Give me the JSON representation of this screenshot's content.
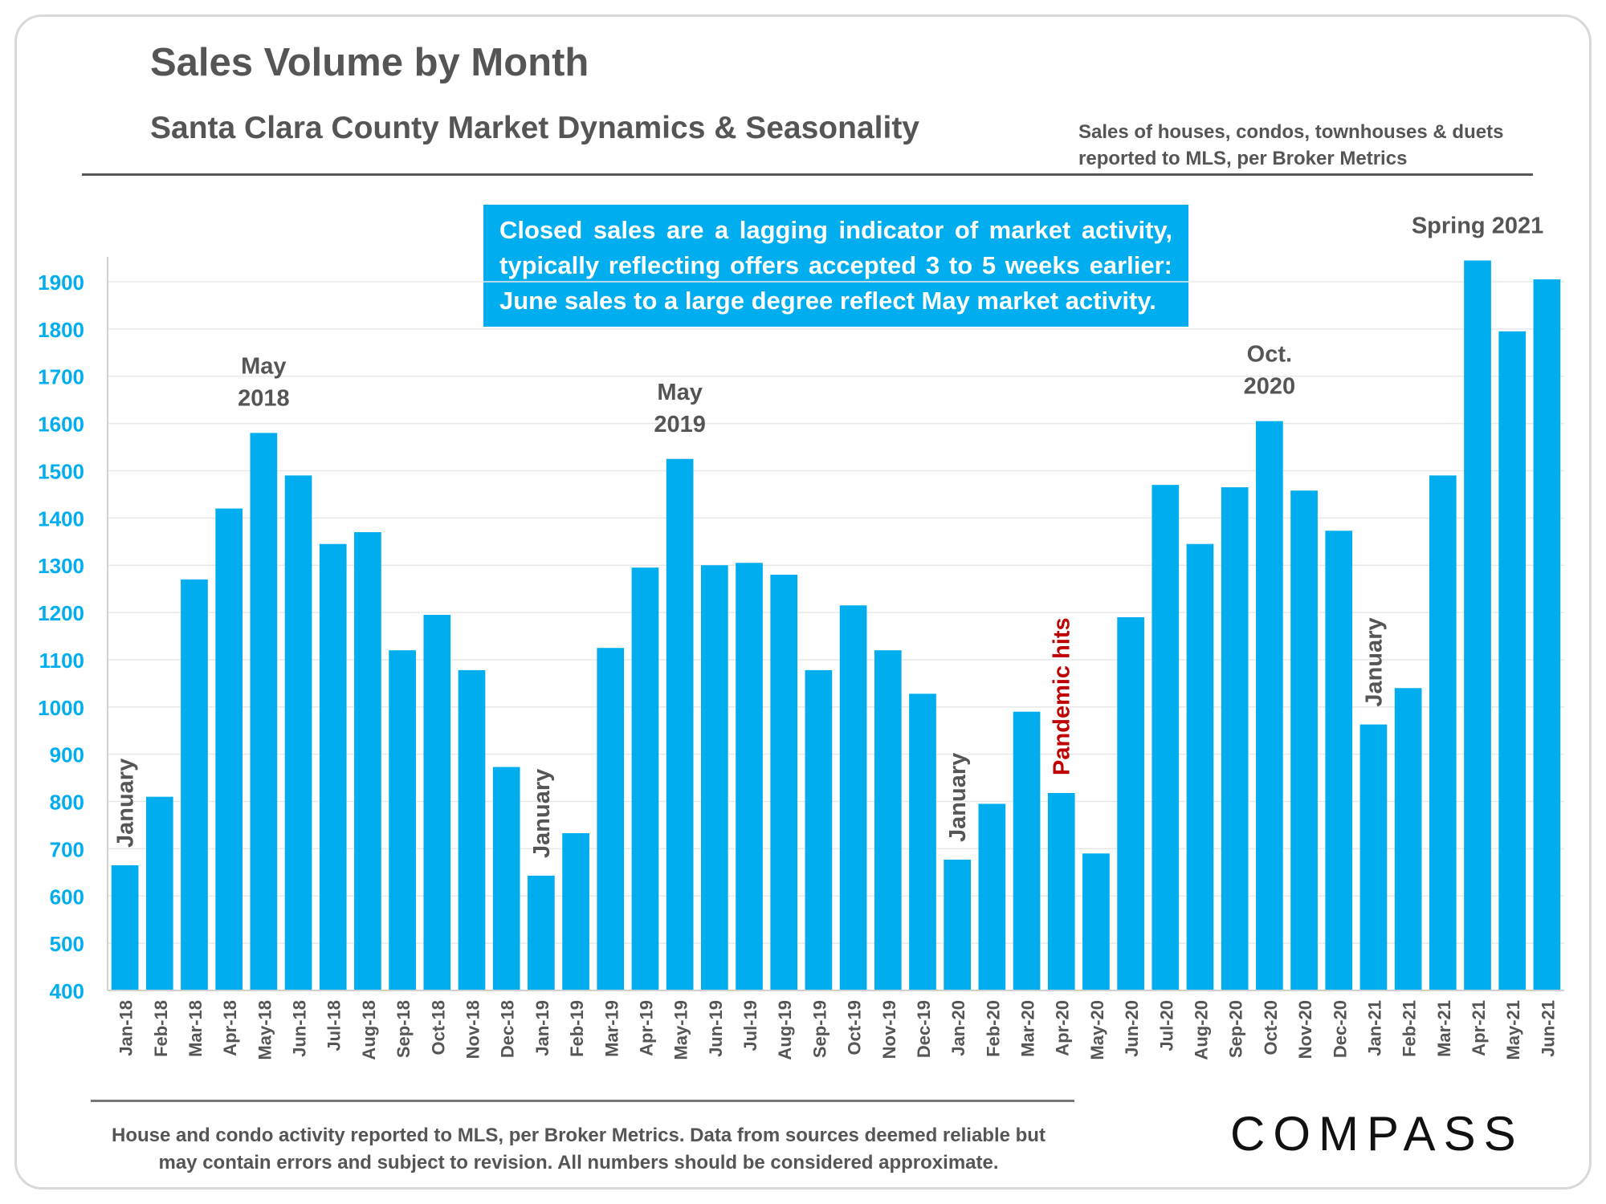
{
  "header": {
    "title": "Sales Volume by Month",
    "subtitle": "Santa Clara County Market Dynamics & Seasonality",
    "source_note": "Sales of houses, condos, townhouses & duets\nreported to MLS, per Broker Metrics"
  },
  "callout": {
    "text": "Closed sales are a lagging indicator of market activity, typically reflecting offers accepted 3 to 5 weeks earlier: June sales to a large degree reflect May market activity."
  },
  "footer": {
    "text": "House and condo activity reported to MLS, per Broker Metrics. Data from sources deemed reliable but\nmay contain errors and subject to revision. All numbers should be considered approximate.",
    "logo": "COMPASS"
  },
  "colors": {
    "bar": "#00aeef",
    "axis_tick_label": "#00aeef",
    "annotation": "#555555",
    "pandemic_annotation": "#c00000"
  },
  "chart_data": {
    "type": "bar",
    "title": "Sales Volume by Month",
    "ylim": [
      400,
      1950
    ],
    "yticks": [
      400,
      500,
      600,
      700,
      800,
      900,
      1000,
      1100,
      1200,
      1300,
      1400,
      1500,
      1600,
      1700,
      1800,
      1900
    ],
    "grid": true,
    "categories": [
      "Jan-18",
      "Feb-18",
      "Mar-18",
      "Apr-18",
      "May-18",
      "Jun-18",
      "Jul-18",
      "Aug-18",
      "Sep-18",
      "Oct-18",
      "Nov-18",
      "Dec-18",
      "Jan-19",
      "Feb-19",
      "Mar-19",
      "Apr-19",
      "May-19",
      "Jun-19",
      "Jul-19",
      "Aug-19",
      "Sep-19",
      "Oct-19",
      "Nov-19",
      "Dec-19",
      "Jan-20",
      "Feb-20",
      "Mar-20",
      "Apr-20",
      "May-20",
      "Jun-20",
      "Jul-20",
      "Aug-20",
      "Sep-20",
      "Oct-20",
      "Nov-20",
      "Dec-20",
      "Jan-21",
      "Feb-21",
      "Mar-21",
      "Apr-21",
      "May-21",
      "Jun-21"
    ],
    "values": [
      665,
      810,
      1270,
      1420,
      1580,
      1490,
      1345,
      1370,
      1120,
      1195,
      1078,
      873,
      643,
      733,
      1125,
      1295,
      1525,
      1300,
      1305,
      1280,
      1078,
      1215,
      1120,
      1028,
      677,
      795,
      990,
      818,
      690,
      1190,
      1470,
      1345,
      1465,
      1605,
      1458,
      1373,
      963,
      1040,
      1490,
      1945,
      1795,
      1905
    ],
    "annotations": [
      {
        "label": "January",
        "category": "Jan-18",
        "orientation": "vertical",
        "color": "annotation"
      },
      {
        "label": "May\n2018",
        "category": "May-18",
        "orientation": "horizontal",
        "color": "annotation"
      },
      {
        "label": "January",
        "category": "Jan-19",
        "orientation": "vertical",
        "color": "annotation"
      },
      {
        "label": "May\n2019",
        "category": "May-19",
        "orientation": "horizontal",
        "color": "annotation"
      },
      {
        "label": "January",
        "category": "Jan-20",
        "orientation": "vertical",
        "color": "annotation"
      },
      {
        "label": "Pandemic hits",
        "category": "Apr-20",
        "orientation": "vertical",
        "color": "pandemic_annotation"
      },
      {
        "label": "Oct.\n2020",
        "category": "Oct-20",
        "orientation": "horizontal",
        "color": "annotation"
      },
      {
        "label": "January",
        "category": "Jan-21",
        "orientation": "vertical",
        "color": "annotation"
      },
      {
        "label": "Spring 2021",
        "category": "Apr-21",
        "orientation": "horizontal",
        "color": "annotation"
      }
    ]
  }
}
